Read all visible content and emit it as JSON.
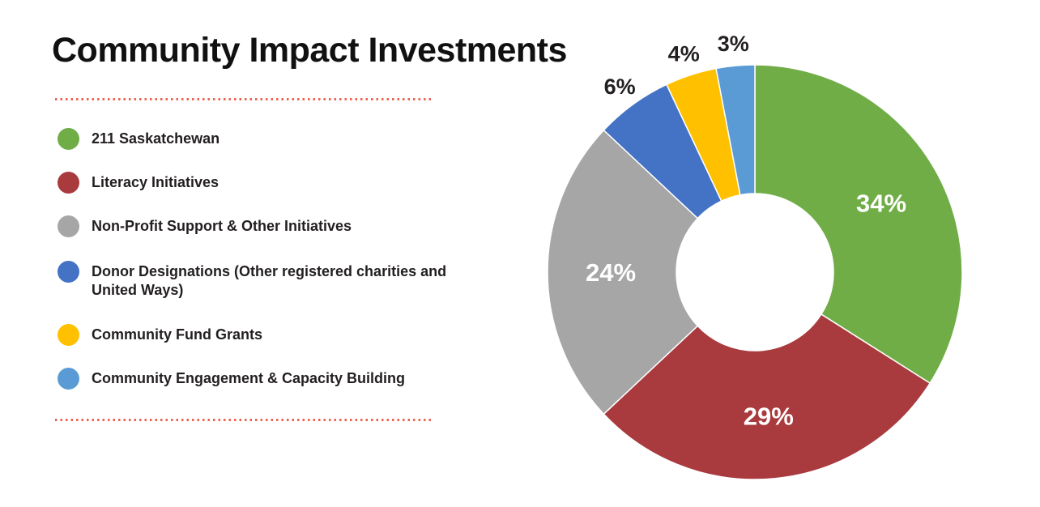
{
  "page": {
    "title": "Community Impact Investments",
    "title_color": "#111111",
    "background": "#FFFFFF",
    "divider_color": "#EE6352"
  },
  "chart_data": {
    "type": "pie",
    "subtype": "donut",
    "title": "Community Impact Investments",
    "legend_position": "left",
    "direction": "clockwise",
    "start_angle_deg": 0,
    "inner_radius_ratio": 0.38,
    "total": 100,
    "categories": [
      "211 Saskatchewan",
      "Literacy Initiatives",
      "Non-Profit Support & Other Initiatives",
      "Donor Designations (Other registered charities and United Ways)",
      "Community Fund Grants",
      "Community Engagement & Capacity Building"
    ],
    "values": [
      34,
      29,
      24,
      6,
      4,
      3
    ],
    "slices": [
      {
        "label": "211 Saskatchewan",
        "value": 34,
        "pct_label": "34%",
        "color": "#70AD47",
        "label_placement": "inside"
      },
      {
        "label": "Literacy Initiatives",
        "value": 29,
        "pct_label": "29%",
        "color": "#A93A3E",
        "label_placement": "inside"
      },
      {
        "label": "Non-Profit Support & Other Initiatives",
        "value": 24,
        "pct_label": "24%",
        "color": "#A6A6A6",
        "label_placement": "inside"
      },
      {
        "label": "Donor Designations (Other registered charities and United Ways)",
        "value": 6,
        "pct_label": "6%",
        "color": "#4472C4",
        "label_placement": "outside"
      },
      {
        "label": "Community Fund Grants",
        "value": 4,
        "pct_label": "4%",
        "color": "#FFC000",
        "label_placement": "outside"
      },
      {
        "label": "Community Engagement & Capacity Building",
        "value": 3,
        "pct_label": "3%",
        "color": "#5B9BD5",
        "label_placement": "outside"
      }
    ],
    "inside_label_color": "#FFFFFF",
    "outside_label_color": "#231F20"
  }
}
